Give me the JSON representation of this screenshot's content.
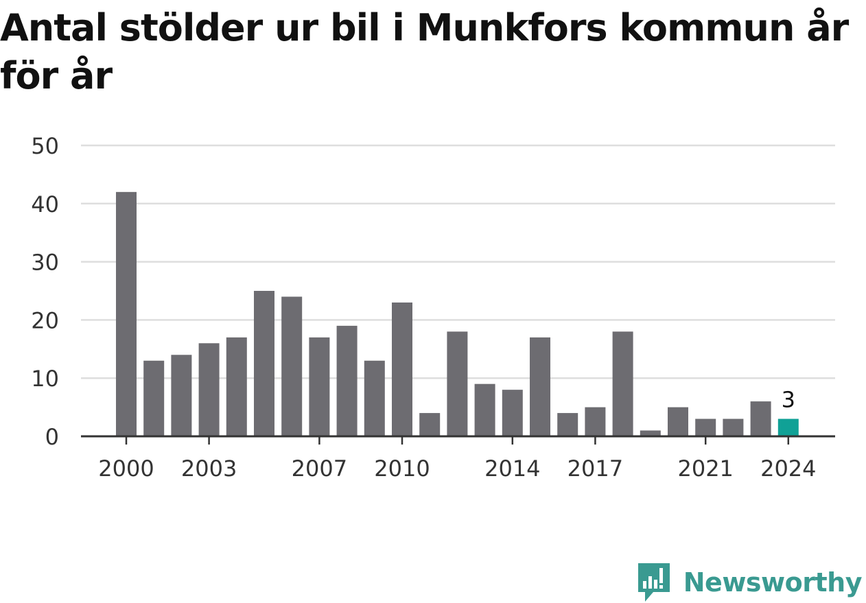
{
  "title": "Antal stölder ur bil i Munkfors kommun år för år",
  "brand": {
    "name": "Newsworthy",
    "color": "#3a9a91",
    "icon": "newsworthy-logo-icon"
  },
  "colors": {
    "bar": "#6d6c71",
    "highlight": "#10a196",
    "grid": "#dedede",
    "axis": "#333333"
  },
  "chart_data": {
    "type": "bar",
    "categories": [
      "2000",
      "2001",
      "2002",
      "2003",
      "2004",
      "2005",
      "2006",
      "2007",
      "2008",
      "2009",
      "2010",
      "2011",
      "2012",
      "2013",
      "2014",
      "2015",
      "2016",
      "2017",
      "2018",
      "2019",
      "2020",
      "2021",
      "2022",
      "2023",
      "2024"
    ],
    "values": [
      42,
      13,
      14,
      16,
      17,
      25,
      24,
      17,
      19,
      13,
      23,
      4,
      18,
      9,
      8,
      17,
      4,
      5,
      18,
      1,
      5,
      3,
      3,
      6,
      3
    ],
    "x_tick_labels": [
      "2000",
      "2003",
      "2007",
      "2010",
      "2014",
      "2017",
      "2021",
      "2024"
    ],
    "y_ticks": [
      0,
      10,
      20,
      30,
      40,
      50
    ],
    "ylim": [
      0,
      50
    ],
    "highlight_category": "2024",
    "highlight_label": "3",
    "grid": true,
    "legend": "none"
  }
}
